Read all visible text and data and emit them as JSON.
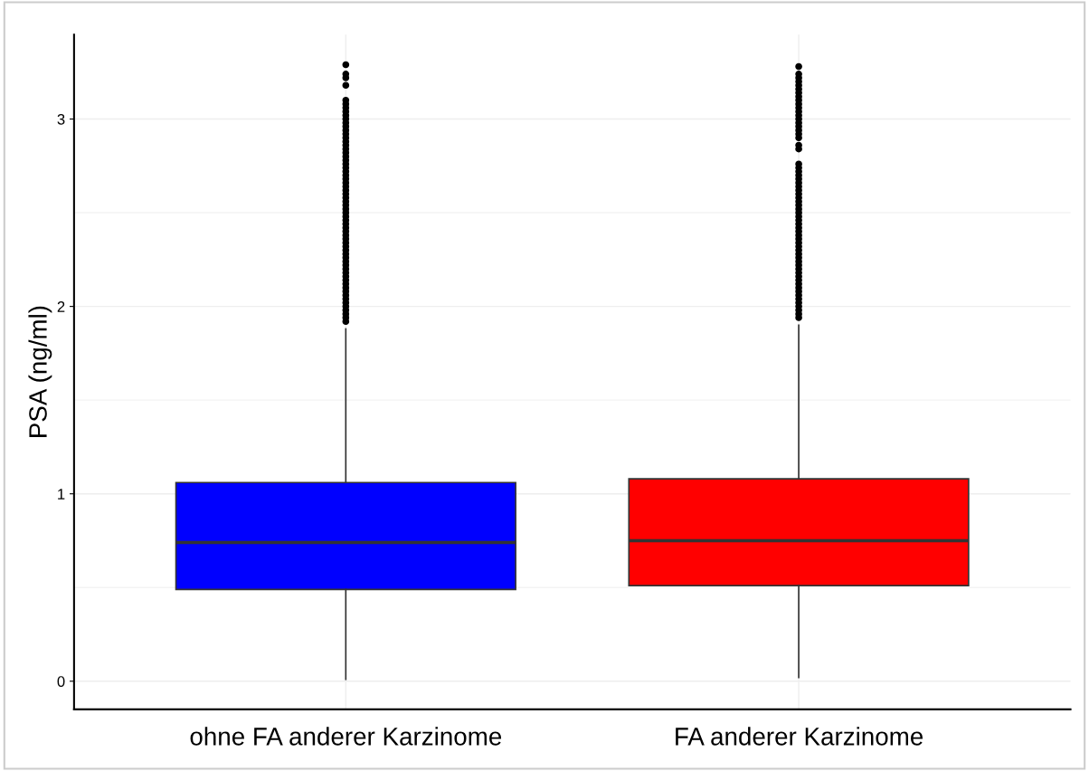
{
  "chart_data": {
    "type": "box",
    "ylabel": "PSA (ng/ml)",
    "categories": [
      "ohne FA anderer Karzinome",
      "FA anderer Karzinome"
    ],
    "ylim": [
      -0.15,
      3.45
    ],
    "yticks": [
      0,
      1,
      2,
      3
    ],
    "grid": true,
    "colors": [
      "#0000ff",
      "#ff0000"
    ],
    "boxes": [
      {
        "low": 0.01,
        "q1": 0.49,
        "median": 0.74,
        "q3": 1.06,
        "high": 1.88,
        "outliers": [
          1.92,
          1.94,
          1.96,
          1.98,
          2.0,
          2.02,
          2.04,
          2.06,
          2.08,
          2.1,
          2.12,
          2.14,
          2.16,
          2.18,
          2.2,
          2.22,
          2.24,
          2.26,
          2.28,
          2.3,
          2.32,
          2.34,
          2.36,
          2.38,
          2.4,
          2.42,
          2.44,
          2.46,
          2.48,
          2.5,
          2.52,
          2.54,
          2.56,
          2.58,
          2.6,
          2.62,
          2.64,
          2.66,
          2.68,
          2.7,
          2.72,
          2.74,
          2.76,
          2.78,
          2.8,
          2.82,
          2.84,
          2.86,
          2.88,
          2.9,
          2.92,
          2.94,
          2.96,
          2.98,
          3.0,
          3.02,
          3.04,
          3.06,
          3.08,
          3.1,
          3.18,
          3.22,
          3.24,
          3.29
        ]
      },
      {
        "low": 0.02,
        "q1": 0.51,
        "median": 0.75,
        "q3": 1.08,
        "high": 1.9,
        "outliers": [
          1.94,
          1.96,
          1.98,
          2.0,
          2.02,
          2.04,
          2.06,
          2.08,
          2.1,
          2.12,
          2.14,
          2.16,
          2.18,
          2.2,
          2.22,
          2.24,
          2.26,
          2.28,
          2.3,
          2.32,
          2.34,
          2.36,
          2.38,
          2.4,
          2.42,
          2.44,
          2.46,
          2.48,
          2.5,
          2.52,
          2.54,
          2.56,
          2.58,
          2.6,
          2.62,
          2.64,
          2.66,
          2.68,
          2.7,
          2.72,
          2.74,
          2.76,
          2.84,
          2.86,
          2.9,
          2.92,
          2.94,
          2.96,
          2.98,
          3.0,
          3.02,
          3.04,
          3.06,
          3.08,
          3.1,
          3.12,
          3.14,
          3.16,
          3.18,
          3.2,
          3.22,
          3.24,
          3.28
        ]
      }
    ]
  }
}
